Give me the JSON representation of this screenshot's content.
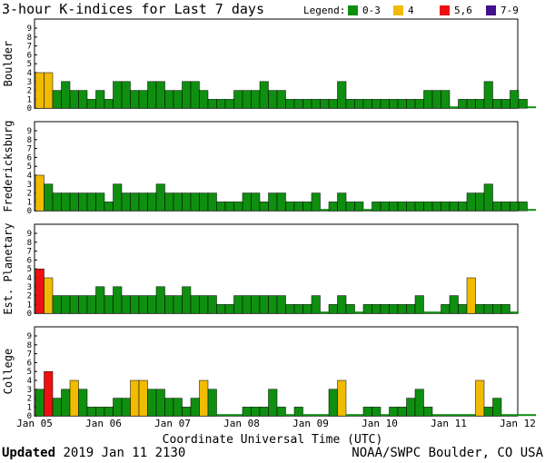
{
  "title": "3-hour K-indices for Last 7 days",
  "legend": {
    "label": "Legend:",
    "items": [
      {
        "label": "0-3",
        "color": "#0f8f0f"
      },
      {
        "label": "4",
        "color": "#f0bb00"
      },
      {
        "label": "5,6",
        "color": "#ee1111"
      },
      {
        "label": "7-9",
        "color": "#44118c"
      }
    ]
  },
  "footer": {
    "updated_label": "Updated",
    "updated_value": "2019 Jan 11 2130",
    "credit": "NOAA/SWPC Boulder, CO USA"
  },
  "chart_data": {
    "type": "bar",
    "title": "3-hour K-indices for Last 7 days",
    "xlabel": "Coordinate Universal Time (UTC)",
    "x_ticks": [
      "Jan 05",
      "Jan 06",
      "Jan 07",
      "Jan 08",
      "Jan 09",
      "Jan 10",
      "Jan 11",
      "Jan 12"
    ],
    "y_ticks": [
      "0",
      "1",
      "2",
      "3",
      "4",
      "5",
      "6",
      "7",
      "8",
      "9"
    ],
    "ylim": [
      0,
      9
    ],
    "intervals_per_day": 8,
    "panels": [
      {
        "name": "Boulder",
        "values": [
          4,
          4,
          2,
          3,
          2,
          2,
          1,
          2,
          1,
          3,
          3,
          2,
          2,
          3,
          3,
          2,
          2,
          3,
          3,
          2,
          1,
          1,
          1,
          2,
          2,
          2,
          3,
          2,
          2,
          1,
          1,
          1,
          1,
          1,
          1,
          3,
          1,
          1,
          1,
          1,
          1,
          1,
          1,
          1,
          1,
          2,
          2,
          2,
          0,
          1,
          1,
          1,
          3,
          1,
          1,
          2,
          1,
          0
        ]
      },
      {
        "name": "Fredericksburg",
        "values": [
          4,
          3,
          2,
          2,
          2,
          2,
          2,
          2,
          1,
          3,
          2,
          2,
          2,
          2,
          3,
          2,
          2,
          2,
          2,
          2,
          2,
          1,
          1,
          1,
          2,
          2,
          1,
          2,
          2,
          1,
          1,
          1,
          2,
          0,
          1,
          2,
          1,
          1,
          0,
          1,
          1,
          1,
          1,
          1,
          1,
          1,
          1,
          1,
          1,
          1,
          2,
          2,
          3,
          1,
          1,
          1,
          1,
          0
        ]
      },
      {
        "name": "Est. Planetary",
        "values": [
          5,
          4,
          2,
          2,
          2,
          2,
          2,
          3,
          2,
          3,
          2,
          2,
          2,
          2,
          3,
          2,
          2,
          3,
          2,
          2,
          2,
          1,
          1,
          2,
          2,
          2,
          2,
          2,
          2,
          1,
          1,
          1,
          2,
          0,
          1,
          2,
          1,
          0,
          1,
          1,
          1,
          1,
          1,
          1,
          2,
          0,
          0,
          1,
          2,
          1,
          4,
          1,
          1,
          1,
          1,
          0
        ]
      },
      {
        "name": "College",
        "values": [
          3,
          5,
          2,
          3,
          4,
          3,
          1,
          1,
          1,
          2,
          2,
          4,
          4,
          3,
          3,
          2,
          2,
          1,
          2,
          4,
          3,
          0,
          0,
          0,
          1,
          1,
          1,
          3,
          1,
          0,
          1,
          0,
          0,
          0,
          3,
          4,
          0,
          0,
          1,
          1,
          0,
          1,
          1,
          2,
          3,
          1,
          0,
          0,
          0,
          0,
          0,
          4,
          1,
          2,
          0,
          0,
          0,
          0
        ]
      }
    ]
  }
}
